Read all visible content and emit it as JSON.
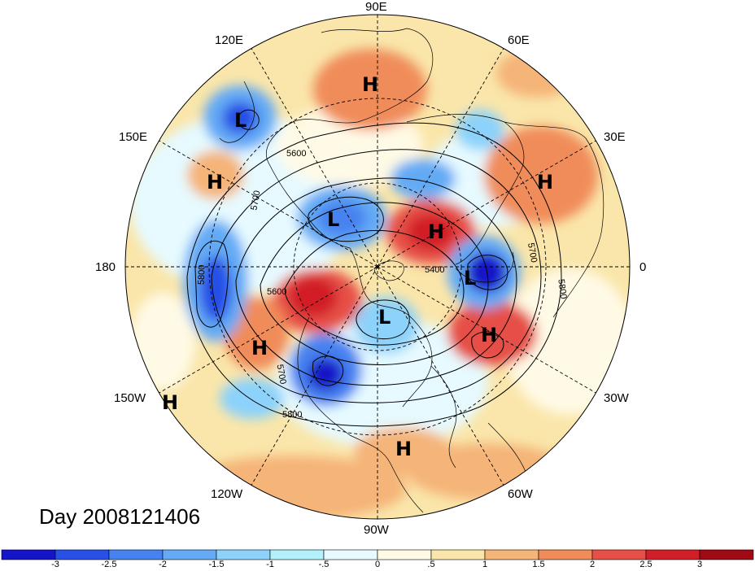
{
  "map": {
    "projection": "north-polar-stereographic",
    "longitude_labels": [
      {
        "id": "90e",
        "text": "90E"
      },
      {
        "id": "60e",
        "text": "60E"
      },
      {
        "id": "30e",
        "text": "30E"
      },
      {
        "id": "0",
        "text": "0"
      },
      {
        "id": "30w",
        "text": "30W"
      },
      {
        "id": "60w",
        "text": "60W"
      },
      {
        "id": "90w",
        "text": "90W"
      },
      {
        "id": "120w",
        "text": "120W"
      },
      {
        "id": "150w",
        "text": "150W"
      },
      {
        "id": "180",
        "text": "180"
      },
      {
        "id": "150e",
        "text": "150E"
      },
      {
        "id": "120e",
        "text": "120E"
      }
    ],
    "pressure_centers": [
      {
        "id": "h-siberia",
        "text": "H"
      },
      {
        "id": "l-kamchatka",
        "text": "L"
      },
      {
        "id": "h-pacific-west",
        "text": "H"
      },
      {
        "id": "h-west-asia",
        "text": "H"
      },
      {
        "id": "l-arctic-siberia",
        "text": "L"
      },
      {
        "id": "h-barents",
        "text": "H"
      },
      {
        "id": "l-norway",
        "text": "L"
      },
      {
        "id": "l-hudson",
        "text": "L"
      },
      {
        "id": "h-atlantic",
        "text": "H"
      },
      {
        "id": "h-alaska-south",
        "text": "H"
      },
      {
        "id": "h-pacific-east",
        "text": "H"
      },
      {
        "id": "h-caribbean",
        "text": "H"
      }
    ],
    "contour_labels": [
      {
        "id": "c5600a",
        "text": "5600"
      },
      {
        "id": "c5700a",
        "text": "5700"
      },
      {
        "id": "c5800a",
        "text": "5800"
      },
      {
        "id": "c5600b",
        "text": "5600"
      },
      {
        "id": "c5700b",
        "text": "5700"
      },
      {
        "id": "c5800b",
        "text": "5800"
      },
      {
        "id": "c5400",
        "text": "5400"
      },
      {
        "id": "c5700c",
        "text": "5700"
      },
      {
        "id": "c5800c",
        "text": "5800"
      }
    ],
    "day_label": "Day 2008121406"
  },
  "colorbar": {
    "colors": [
      "#1414c8",
      "#2850e6",
      "#4682f0",
      "#64aaf5",
      "#8cd2fa",
      "#b4f0fa",
      "#e6faff",
      "#fffae6",
      "#fae6aa",
      "#f5b478",
      "#f08c5a",
      "#e65046",
      "#d21e28",
      "#a00a14"
    ],
    "labels": [
      "-3",
      "-2.5",
      "-2",
      "-1.5",
      "-1",
      "-.5",
      "0",
      ".5",
      "1",
      "1.5",
      "2",
      "2.5",
      "3"
    ]
  }
}
